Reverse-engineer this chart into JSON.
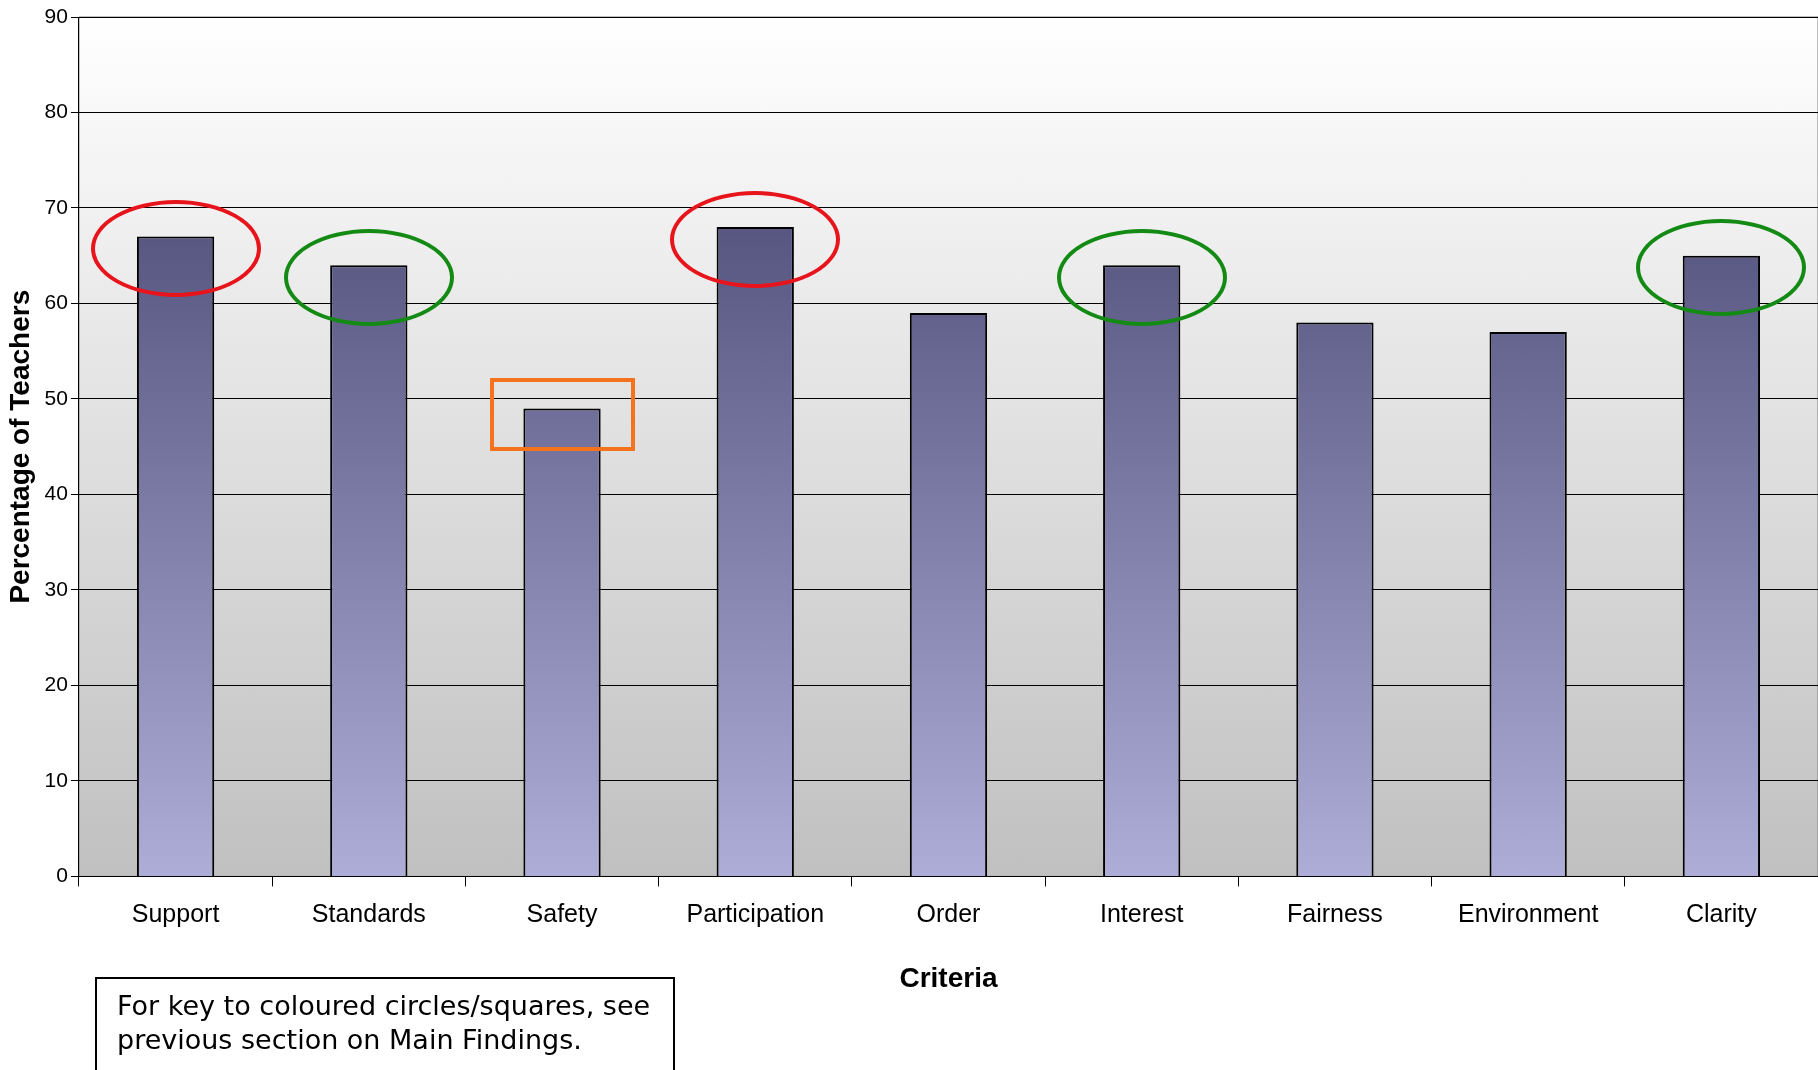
{
  "chart_data": {
    "type": "bar",
    "xlabel": "Criteria",
    "ylabel": "Percentage of Teachers",
    "categories": [
      "Support",
      "Standards",
      "Safety",
      "Participation",
      "Order",
      "Interest",
      "Fairness",
      "Environment",
      "Clarity"
    ],
    "values": [
      67,
      64,
      49,
      68,
      59,
      64,
      58,
      57,
      65
    ],
    "color": "#6a6ab8",
    "ylim": [
      0,
      90
    ],
    "yticks": [
      0,
      10,
      20,
      30,
      40,
      50,
      60,
      70,
      80,
      90
    ],
    "grid": "y",
    "legend": false,
    "annotations": [
      "For key to coloured circles/squares, see previous section on Main Findings."
    ]
  }
}
